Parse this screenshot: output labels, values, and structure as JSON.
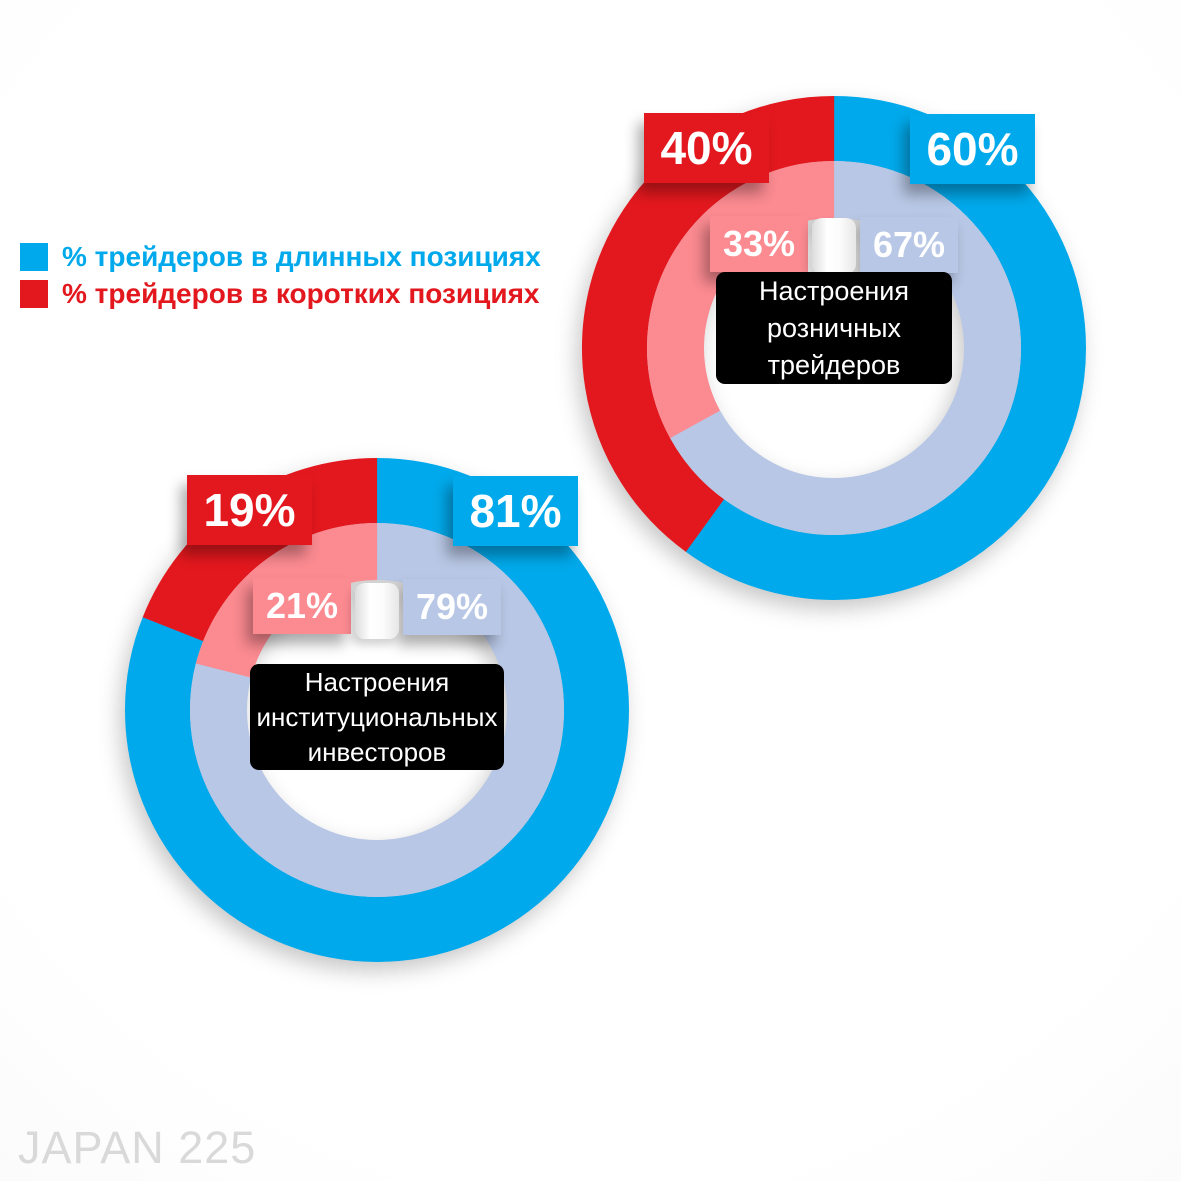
{
  "legend": {
    "items": [
      {
        "id": "long",
        "label": "% трейдеров в длинных позициях"
      },
      {
        "id": "short",
        "label": "% трейдеров в коротких позициях"
      }
    ]
  },
  "watermark": "JAPAN 225",
  "colors": {
    "long": "#00A9EB",
    "short": "#E3181E",
    "long_muted": "#B8C7E5",
    "short_muted": "#FB8A91",
    "title_box_bg": "#000000",
    "title_box_text": "#FFFFFF",
    "label_text": "#FFFFFF",
    "watermark": "#D9D9D9"
  },
  "chart_data": [
    {
      "type": "pie",
      "variant": "double_donut",
      "title": "Настроения розничных трейдеров",
      "title_lines": [
        "Настроения",
        "розничных",
        "трейдеров"
      ],
      "outer_ring": {
        "long_pct": 60,
        "short_pct": 40
      },
      "inner_ring": {
        "long_pct": 67,
        "short_pct": 33
      },
      "labels": {
        "outer_long": "60%",
        "outer_short": "40%",
        "inner_long": "67%",
        "inner_short": "33%"
      }
    },
    {
      "type": "pie",
      "variant": "double_donut",
      "title": "Настроения институциональных инвесторов",
      "title_lines": [
        "Настроения",
        "институциональных",
        "инвесторов"
      ],
      "outer_ring": {
        "long_pct": 81,
        "short_pct": 19
      },
      "inner_ring": {
        "long_pct": 79,
        "short_pct": 21
      },
      "labels": {
        "outer_long": "81%",
        "outer_short": "19%",
        "inner_long": "79%",
        "inner_short": "21%"
      }
    }
  ]
}
